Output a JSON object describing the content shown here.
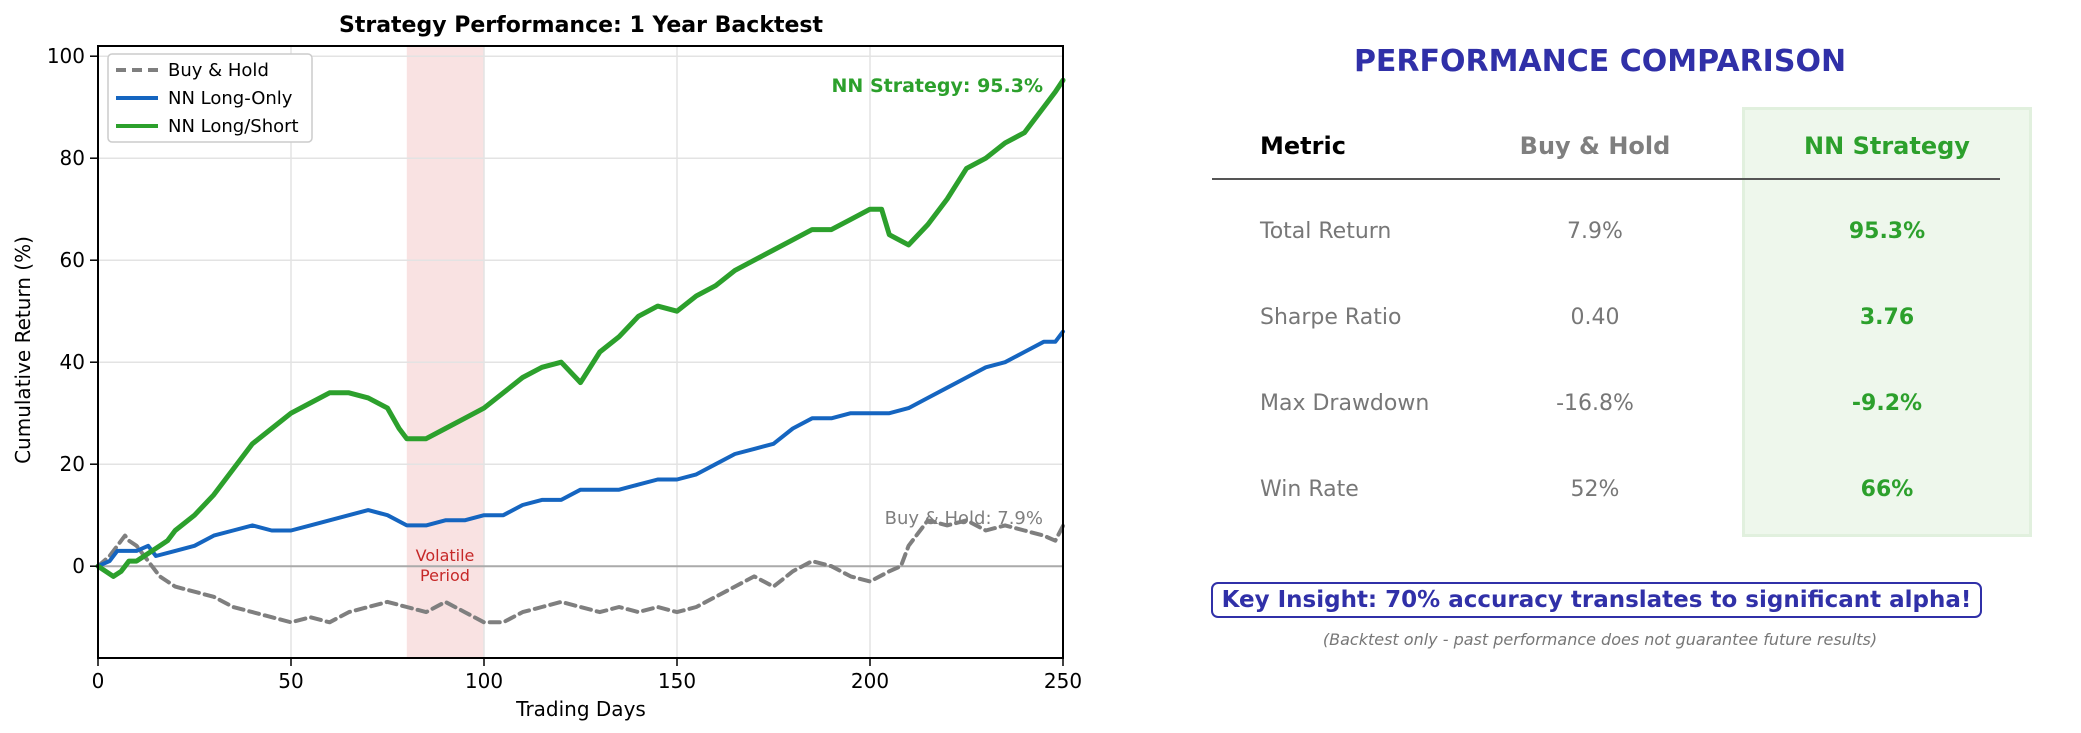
{
  "chart_data": {
    "type": "line",
    "title": "Strategy Performance: 1 Year Backtest",
    "xlabel": "Trading Days",
    "ylabel": "Cumulative Return (%)",
    "xlim": [
      0,
      250
    ],
    "ylim": [
      -18,
      102
    ],
    "xticks": [
      0,
      50,
      100,
      150,
      200,
      250
    ],
    "yticks": [
      0,
      20,
      40,
      60,
      80,
      100
    ],
    "grid": true,
    "legend_position": "top-left",
    "shaded_region": {
      "x_start": 80,
      "x_end": 100,
      "label_line1": "Volatile",
      "label_line2": "Period",
      "color": "#f4c6c6"
    },
    "annotations": {
      "nn_end": "NN Strategy: 95.3%",
      "bh_end": "Buy & Hold: 7.9%"
    },
    "series": [
      {
        "name": "Buy & Hold",
        "color": "#7f7f7f",
        "style": "dashed",
        "x": [
          0,
          3,
          5,
          7,
          8,
          10,
          12,
          14,
          16,
          18,
          20,
          25,
          30,
          35,
          40,
          45,
          50,
          55,
          60,
          65,
          70,
          75,
          80,
          85,
          90,
          95,
          100,
          105,
          110,
          115,
          120,
          125,
          130,
          135,
          140,
          145,
          150,
          155,
          160,
          165,
          170,
          175,
          180,
          185,
          190,
          195,
          200,
          205,
          208,
          210,
          215,
          220,
          225,
          230,
          235,
          240,
          245,
          248,
          250
        ],
        "y": [
          0,
          2,
          4,
          6,
          5,
          4,
          2,
          0,
          -2,
          -3,
          -4,
          -5,
          -6,
          -8,
          -9,
          -10,
          -11,
          -10,
          -11,
          -9,
          -8,
          -7,
          -8,
          -9,
          -7,
          -9,
          -11,
          -11,
          -9,
          -8,
          -7,
          -8,
          -9,
          -8,
          -9,
          -8,
          -9,
          -8,
          -6,
          -4,
          -2,
          -4,
          -1,
          1,
          0,
          -2,
          -3,
          -1,
          0,
          4,
          9,
          8,
          9,
          7,
          8,
          7,
          6,
          5,
          7.9
        ]
      },
      {
        "name": "NN Long-Only",
        "color": "#1565c0",
        "style": "solid",
        "x": [
          0,
          3,
          5,
          7,
          10,
          13,
          15,
          20,
          25,
          30,
          35,
          40,
          45,
          50,
          55,
          60,
          65,
          70,
          75,
          80,
          85,
          90,
          95,
          100,
          105,
          110,
          115,
          120,
          125,
          130,
          135,
          140,
          145,
          150,
          155,
          160,
          165,
          170,
          175,
          180,
          185,
          190,
          195,
          200,
          205,
          210,
          215,
          220,
          225,
          230,
          235,
          240,
          245,
          248,
          250
        ],
        "y": [
          0,
          1,
          3,
          3,
          3,
          4,
          2,
          3,
          4,
          6,
          7,
          8,
          7,
          7,
          8,
          9,
          10,
          11,
          10,
          8,
          8,
          9,
          9,
          10,
          10,
          12,
          13,
          13,
          15,
          15,
          15,
          16,
          17,
          17,
          18,
          20,
          22,
          23,
          24,
          27,
          29,
          29,
          30,
          30,
          30,
          31,
          33,
          35,
          37,
          39,
          40,
          42,
          44,
          44,
          46
        ]
      },
      {
        "name": "NN Long/Short",
        "color": "#2ca02c",
        "style": "solid",
        "x": [
          0,
          2,
          4,
          6,
          8,
          10,
          12,
          14,
          16,
          18,
          20,
          25,
          30,
          35,
          40,
          45,
          50,
          55,
          60,
          65,
          70,
          75,
          78,
          80,
          85,
          90,
          95,
          100,
          105,
          110,
          115,
          120,
          125,
          130,
          135,
          140,
          145,
          150,
          155,
          160,
          165,
          170,
          175,
          180,
          185,
          190,
          195,
          200,
          203,
          205,
          210,
          215,
          220,
          225,
          230,
          235,
          240,
          245,
          248,
          250
        ],
        "y": [
          0,
          -1,
          -2,
          -1,
          1,
          1,
          2,
          3,
          4,
          5,
          7,
          10,
          14,
          19,
          24,
          27,
          30,
          32,
          34,
          34,
          33,
          31,
          27,
          25,
          25,
          27,
          29,
          31,
          34,
          37,
          39,
          40,
          36,
          42,
          45,
          49,
          51,
          50,
          53,
          55,
          58,
          60,
          62,
          64,
          66,
          66,
          68,
          70,
          70,
          65,
          63,
          67,
          72,
          78,
          80,
          83,
          85,
          90,
          93,
          95.3
        ]
      }
    ]
  },
  "comparison": {
    "title": "PERFORMANCE COMPARISON",
    "columns": [
      "Metric",
      "Buy & Hold",
      "NN Strategy"
    ],
    "rows": [
      {
        "metric": "Total Return",
        "buy_hold": "7.9%",
        "nn": "95.3%"
      },
      {
        "metric": "Sharpe Ratio",
        "buy_hold": "0.40",
        "nn": "3.76"
      },
      {
        "metric": "Max Drawdown",
        "buy_hold": "-16.8%",
        "nn": "-9.2%"
      },
      {
        "metric": "Win Rate",
        "buy_hold": "52%",
        "nn": "66%"
      }
    ],
    "insight": "Key Insight: 70% accuracy translates to significant alpha!",
    "disclaimer": "(Backtest only - past performance does not guarantee future results)"
  }
}
